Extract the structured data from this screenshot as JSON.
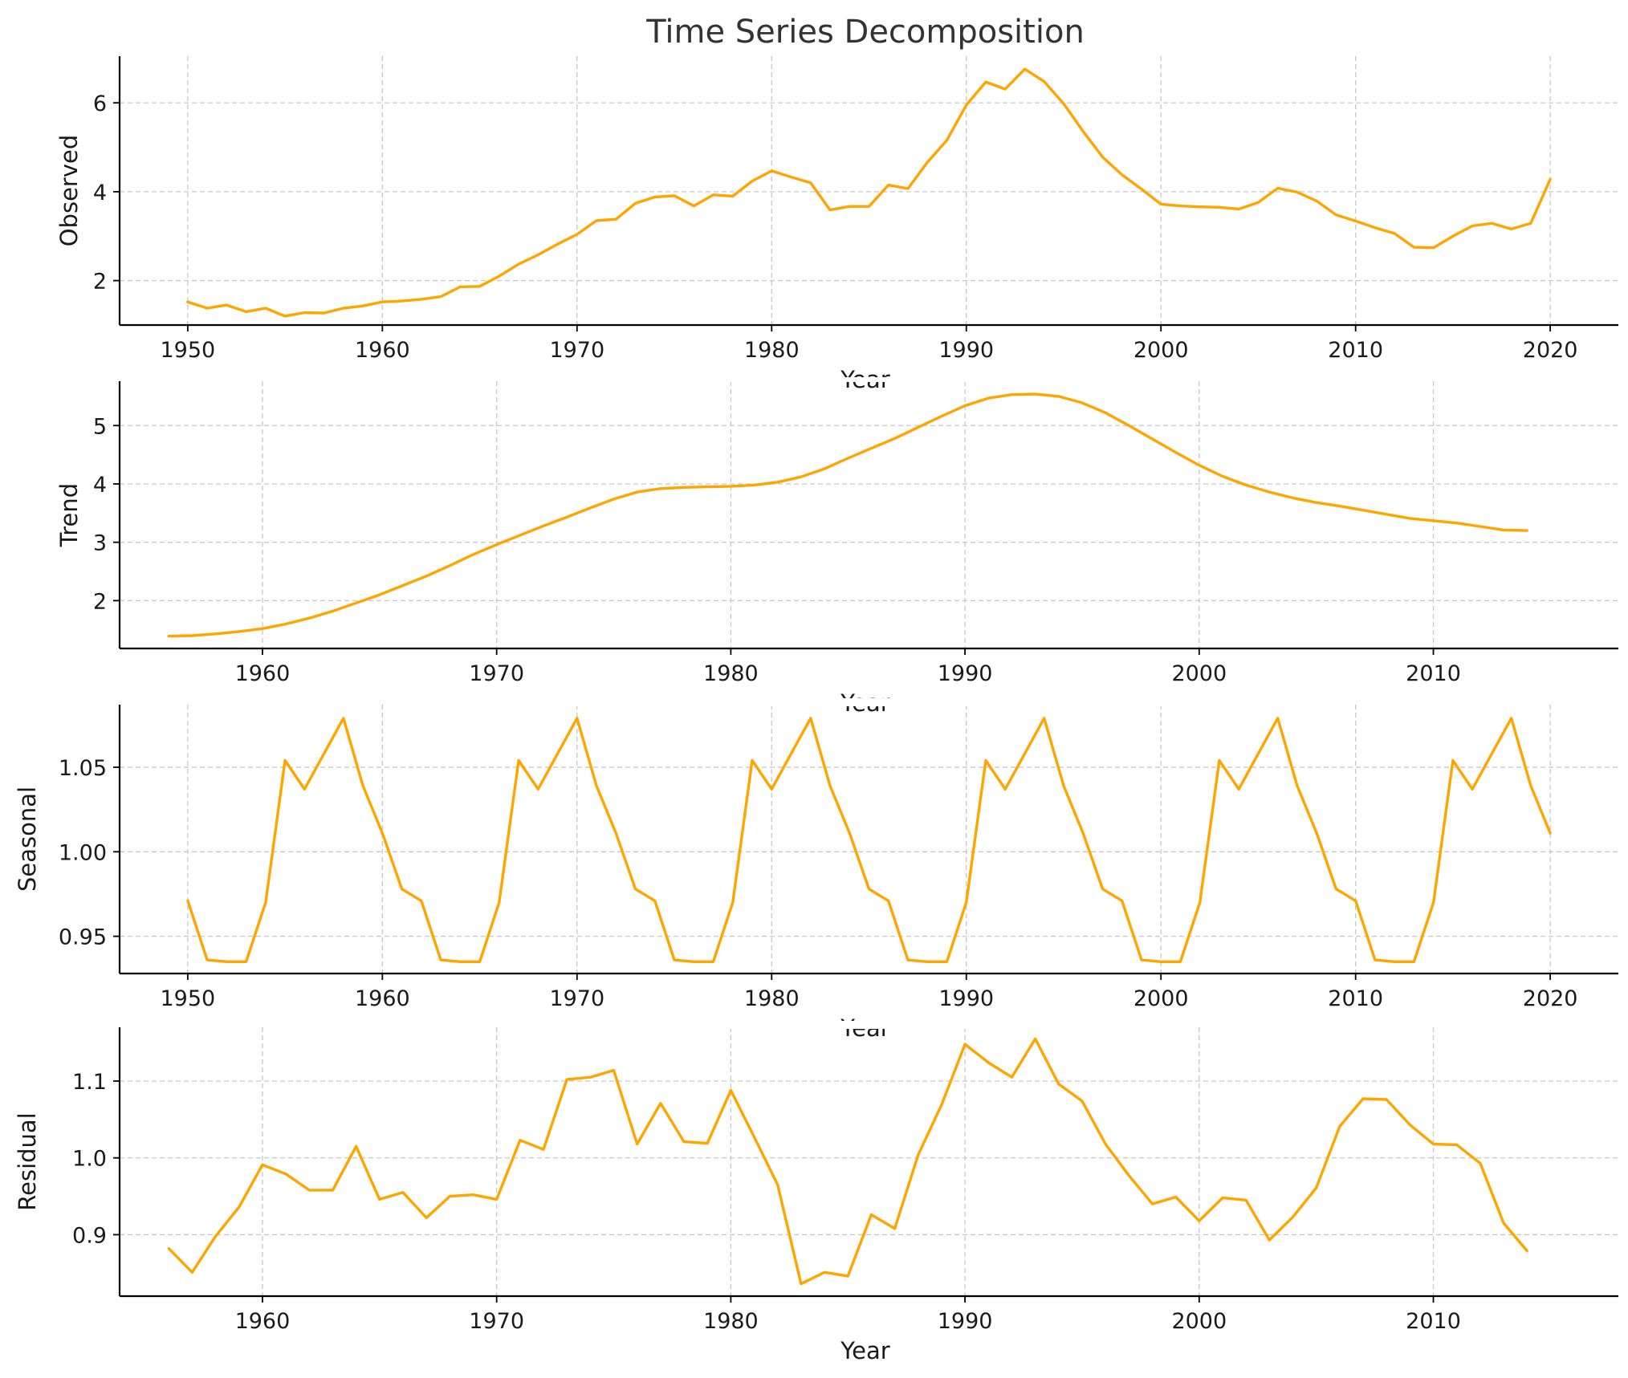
{
  "title": "Time Series Decomposition",
  "colors": {
    "line": "#FFA500"
  },
  "chart_data": [
    {
      "type": "line",
      "name": "observed",
      "xlabel": "Year",
      "ylabel": "Observed",
      "xlim": [
        1946.5,
        2023.5
      ],
      "ylim": [
        1.0,
        7.05
      ],
      "xticks": [
        1950,
        1960,
        1970,
        1980,
        1990,
        2000,
        2010,
        2020
      ],
      "yticks": [
        2,
        4,
        6
      ],
      "ytick_labels": [
        "2",
        "4",
        "6"
      ],
      "grid": true,
      "x": [
        1950,
        1951,
        1952,
        1953,
        1954,
        1955,
        1956,
        1957,
        1958,
        1959,
        1960,
        1961,
        1962,
        1963,
        1964,
        1965,
        1966,
        1967,
        1968,
        1969,
        1970,
        1971,
        1972,
        1973,
        1974,
        1975,
        1976,
        1977,
        1978,
        1979,
        1980,
        1981,
        1982,
        1983,
        1984,
        1985,
        1986,
        1987,
        1988,
        1989,
        1990,
        1991,
        1992,
        1993,
        1994,
        1995,
        1996,
        1997,
        1998,
        1999,
        2000,
        2001,
        2002,
        2003,
        2004,
        2005,
        2006,
        2007,
        2008,
        2009,
        2010,
        2011,
        2012,
        2013,
        2014,
        2015,
        2016,
        2017,
        2018,
        2019,
        2020
      ],
      "y": [
        1.52,
        1.38,
        1.45,
        1.3,
        1.38,
        1.2,
        1.28,
        1.27,
        1.38,
        1.43,
        1.52,
        1.54,
        1.58,
        1.64,
        1.86,
        1.87,
        2.1,
        2.37,
        2.58,
        2.82,
        3.04,
        3.35,
        3.38,
        3.74,
        3.88,
        3.91,
        3.68,
        3.93,
        3.9,
        4.24,
        4.47,
        4.33,
        4.2,
        3.59,
        3.67,
        3.67,
        4.15,
        4.07,
        4.66,
        5.16,
        5.95,
        6.47,
        6.31,
        6.76,
        6.48,
        5.98,
        5.36,
        4.78,
        4.38,
        4.06,
        3.72,
        3.68,
        3.66,
        3.65,
        3.61,
        3.76,
        4.08,
        3.99,
        3.79,
        3.48,
        3.34,
        3.19,
        3.06,
        2.75,
        2.74,
        3.0,
        3.23,
        3.29,
        3.16,
        3.29,
        4.28
      ]
    },
    {
      "type": "line",
      "name": "trend",
      "xlabel": "Year",
      "ylabel": "Trend",
      "xlim": [
        1953.9,
        2017.9
      ],
      "ylim": [
        1.18,
        5.76
      ],
      "xticks": [
        1960,
        1970,
        1980,
        1990,
        2000,
        2010
      ],
      "yticks": [
        2,
        3,
        4,
        5
      ],
      "ytick_labels": [
        "2",
        "3",
        "4",
        "5"
      ],
      "grid": true,
      "x": [
        1956,
        1957,
        1958,
        1959,
        1960,
        1961,
        1962,
        1963,
        1964,
        1965,
        1966,
        1967,
        1968,
        1969,
        1970,
        1971,
        1972,
        1973,
        1974,
        1975,
        1976,
        1977,
        1978,
        1979,
        1980,
        1981,
        1982,
        1983,
        1984,
        1985,
        1986,
        1987,
        1988,
        1989,
        1990,
        1991,
        1992,
        1993,
        1994,
        1995,
        1996,
        1997,
        1998,
        1999,
        2000,
        2001,
        2002,
        2003,
        2004,
        2005,
        2006,
        2007,
        2008,
        2009,
        2010,
        2011,
        2012,
        2013,
        2014
      ],
      "y": [
        1.39,
        1.4,
        1.43,
        1.47,
        1.52,
        1.6,
        1.7,
        1.82,
        1.96,
        2.1,
        2.26,
        2.42,
        2.6,
        2.79,
        2.96,
        3.12,
        3.28,
        3.43,
        3.59,
        3.74,
        3.86,
        3.92,
        3.94,
        3.95,
        3.96,
        3.98,
        4.03,
        4.12,
        4.26,
        4.44,
        4.61,
        4.78,
        4.97,
        5.16,
        5.34,
        5.47,
        5.53,
        5.54,
        5.5,
        5.39,
        5.22,
        5.0,
        4.77,
        4.54,
        4.32,
        4.13,
        3.98,
        3.86,
        3.76,
        3.68,
        3.62,
        3.55,
        3.48,
        3.41,
        3.37,
        3.33,
        3.27,
        3.21,
        3.2
      ]
    },
    {
      "type": "line",
      "name": "seasonal",
      "xlabel": "Year",
      "ylabel": "Seasonal",
      "xlim": [
        1946.5,
        2023.5
      ],
      "ylim": [
        0.928,
        1.087
      ],
      "xticks": [
        1950,
        1960,
        1970,
        1980,
        1990,
        2000,
        2010,
        2020
      ],
      "yticks": [
        0.95,
        1.0,
        1.05
      ],
      "ytick_labels": [
        "0.95",
        "1.00",
        "1.05"
      ],
      "grid": true,
      "x": [
        1950,
        1951,
        1952,
        1953,
        1954,
        1955,
        1956,
        1957,
        1958,
        1959,
        1960,
        1961,
        1962,
        1963,
        1964,
        1965,
        1966,
        1967,
        1968,
        1969,
        1970,
        1971,
        1972,
        1973,
        1974,
        1975,
        1976,
        1977,
        1978,
        1979,
        1980,
        1981,
        1982,
        1983,
        1984,
        1985,
        1986,
        1987,
        1988,
        1989,
        1990,
        1991,
        1992,
        1993,
        1994,
        1995,
        1996,
        1997,
        1998,
        1999,
        2000,
        2001,
        2002,
        2003,
        2004,
        2005,
        2006,
        2007,
        2008,
        2009,
        2010,
        2011,
        2012,
        2013,
        2014,
        2015,
        2016,
        2017,
        2018,
        2019,
        2020
      ],
      "y": [
        0.971,
        0.936,
        0.935,
        0.935,
        0.97,
        1.054,
        1.037,
        1.058,
        1.079,
        1.039,
        1.011,
        0.978,
        0.971,
        0.936,
        0.935,
        0.935,
        0.97,
        1.054,
        1.037,
        1.058,
        1.079,
        1.039,
        1.011,
        0.978,
        0.971,
        0.936,
        0.935,
        0.935,
        0.97,
        1.054,
        1.037,
        1.058,
        1.079,
        1.039,
        1.011,
        0.978,
        0.971,
        0.936,
        0.935,
        0.935,
        0.97,
        1.054,
        1.037,
        1.058,
        1.079,
        1.039,
        1.011,
        0.978,
        0.971,
        0.936,
        0.935,
        0.935,
        0.97,
        1.054,
        1.037,
        1.058,
        1.079,
        1.039,
        1.011,
        0.978,
        0.971,
        0.936,
        0.935,
        0.935,
        0.97,
        1.054,
        1.037,
        1.058,
        1.079,
        1.039,
        1.011
      ]
    },
    {
      "type": "line",
      "name": "residual",
      "xlabel": "Year",
      "ylabel": "Residual",
      "xlim": [
        1953.9,
        2017.9
      ],
      "ylim": [
        0.82,
        1.17
      ],
      "xticks": [
        1960,
        1970,
        1980,
        1990,
        2000,
        2010
      ],
      "yticks": [
        0.9,
        1.0,
        1.1
      ],
      "ytick_labels": [
        "0.9",
        "1.0",
        "1.1"
      ],
      "grid": true,
      "x": [
        1956,
        1957,
        1958,
        1959,
        1960,
        1961,
        1962,
        1963,
        1964,
        1965,
        1966,
        1967,
        1968,
        1969,
        1970,
        1971,
        1972,
        1973,
        1974,
        1975,
        1976,
        1977,
        1978,
        1979,
        1980,
        1981,
        1982,
        1983,
        1984,
        1985,
        1986,
        1987,
        1988,
        1989,
        1990,
        1991,
        1992,
        1993,
        1994,
        1995,
        1996,
        1997,
        1998,
        1999,
        2000,
        2001,
        2002,
        2003,
        2004,
        2005,
        2006,
        2007,
        2008,
        2009,
        2010,
        2011,
        2012,
        2013,
        2014
      ],
      "y": [
        0.882,
        0.851,
        0.898,
        0.936,
        0.991,
        0.979,
        0.958,
        0.958,
        1.015,
        0.946,
        0.955,
        0.922,
        0.95,
        0.952,
        0.946,
        1.023,
        1.011,
        1.102,
        1.105,
        1.114,
        1.018,
        1.071,
        1.021,
        1.019,
        1.088,
        1.027,
        0.965,
        0.836,
        0.851,
        0.846,
        0.926,
        0.908,
        1.004,
        1.069,
        1.148,
        1.124,
        1.105,
        1.155,
        1.096,
        1.074,
        1.018,
        0.977,
        0.94,
        0.949,
        0.918,
        0.948,
        0.945,
        0.893,
        0.923,
        0.961,
        1.041,
        1.077,
        1.076,
        1.043,
        1.018,
        1.017,
        0.993,
        0.915,
        0.879
      ]
    }
  ]
}
